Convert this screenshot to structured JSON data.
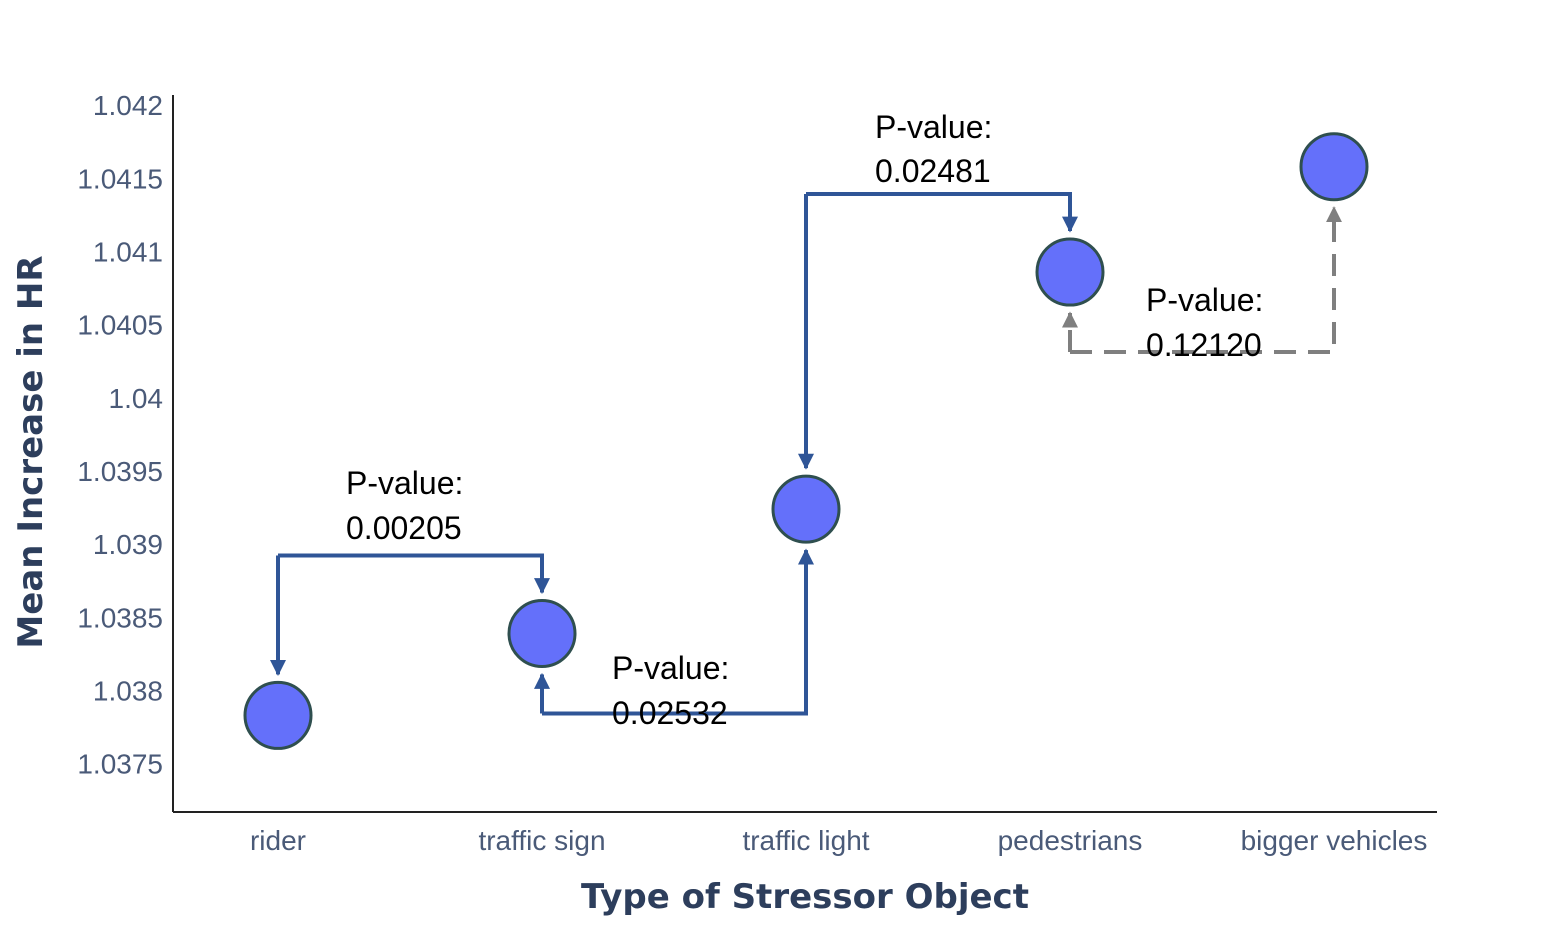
{
  "chart_data": {
    "type": "scatter",
    "xlabel": "Type of Stressor Object",
    "ylabel": "Mean Increase in HR",
    "categories": [
      "rider",
      "traffic sign",
      "traffic light",
      "pedestrians",
      "bigger vehicles"
    ],
    "values": [
      1.03783,
      1.03839,
      1.03924,
      1.04086,
      1.04158
    ],
    "ylim": [
      1.03717,
      1.04207
    ],
    "yticks": [
      1.0375,
      1.038,
      1.0385,
      1.039,
      1.0395,
      1.04,
      1.0405,
      1.041,
      1.0415,
      1.042
    ],
    "ytick_labels": [
      "1.0375",
      "1.038",
      "1.0385",
      "1.039",
      "1.0395",
      "1.04",
      "1.0405",
      "1.041",
      "1.0415",
      "1.042"
    ],
    "grid": false,
    "marker_color": "#6470fa",
    "marker_edge_color": "#2f4f4f",
    "comparisons": [
      {
        "from": "rider",
        "to": "traffic sign",
        "label_1": "P-value:",
        "label_2": "0.00205",
        "style": "solid",
        "color": "#2f5597"
      },
      {
        "from": "traffic sign",
        "to": "traffic light",
        "label_1": "P-value:",
        "label_2": "0.02532",
        "style": "solid",
        "color": "#2f5597"
      },
      {
        "from": "traffic light",
        "to": "pedestrians",
        "label_1": "P-value:",
        "label_2": "0.02481",
        "style": "solid",
        "color": "#2f5597"
      },
      {
        "from": "pedestrians",
        "to": "bigger vehicles",
        "label_1": "P-value:",
        "label_2": "0.12120",
        "style": "dashed",
        "color": "#7f7f7f"
      }
    ]
  }
}
